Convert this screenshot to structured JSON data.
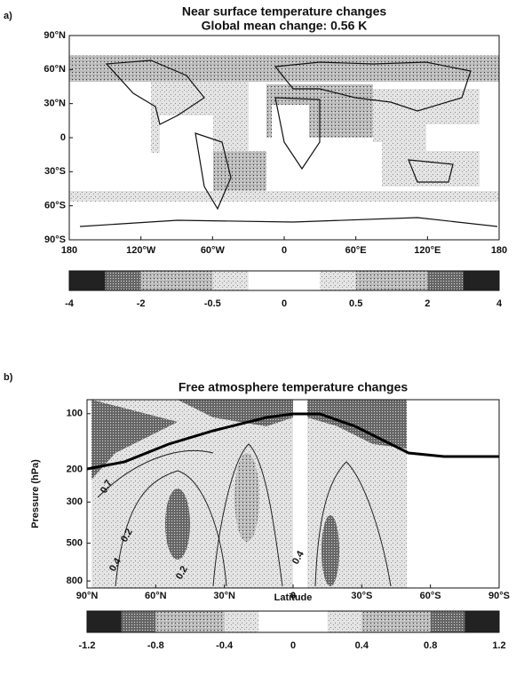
{
  "chart_data": [
    {
      "type": "map",
      "panel_label": "a)",
      "title": "Near surface temperature changes",
      "subtitle": "Global mean change: 0.56 K",
      "xlim": [
        -180,
        180
      ],
      "ylim": [
        -90,
        90
      ],
      "xticks": [
        {
          "value": -180,
          "label": "180"
        },
        {
          "value": -120,
          "label": "120°W"
        },
        {
          "value": -60,
          "label": "60°W"
        },
        0,
        {
          "value": 60,
          "label": "60°E"
        },
        {
          "value": 120,
          "label": "120°E"
        },
        {
          "value": 180,
          "label": "180"
        }
      ],
      "yticks": [
        {
          "value": 90,
          "label": "90°N"
        },
        {
          "value": 60,
          "label": "60°N"
        },
        {
          "value": 30,
          "label": "30°N"
        },
        0,
        {
          "value": -30,
          "label": "30°S"
        },
        {
          "value": -60,
          "label": "60°S"
        },
        {
          "value": -90,
          "label": "90°S"
        }
      ],
      "colorbar_ticks": [
        -4,
        -2,
        -0.5,
        0,
        0.5,
        2,
        4
      ]
    },
    {
      "type": "contour",
      "panel_label": "b)",
      "title": "Free atmosphere temperature changes",
      "x_label": "Latitude",
      "y_label": "Pressure (hPa)",
      "xlim": [
        90,
        -90
      ],
      "ylim": [
        873,
        84
      ],
      "yscale": "log",
      "xticks": [
        {
          "value": 90,
          "label": "90°N"
        },
        {
          "value": 60,
          "label": "60°N"
        },
        {
          "value": 30,
          "label": "30°N"
        },
        0,
        {
          "value": -30,
          "label": "30°S"
        },
        {
          "value": -60,
          "label": "60°S"
        },
        {
          "value": -90,
          "label": "90°S"
        }
      ],
      "yticks": [
        100,
        200,
        300,
        500,
        800
      ],
      "contour_labels": [
        "0.7",
        "0.2",
        "0.4",
        "0.2",
        "0.4"
      ],
      "colorbar_ticks": [
        -1.2,
        -0.8,
        -0.4,
        0,
        0.4,
        0.8,
        1.2
      ]
    }
  ]
}
